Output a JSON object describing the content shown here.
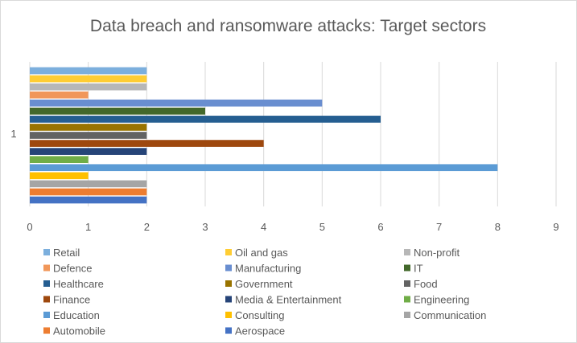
{
  "chart_data": {
    "type": "bar",
    "orientation": "horizontal",
    "title": "Data breach and ransomware attacks: Target sectors",
    "xlabel": "",
    "ylabel": "",
    "categories": [
      "1"
    ],
    "xlim": [
      0,
      9
    ],
    "x_ticks": [
      0,
      1,
      2,
      3,
      4,
      5,
      6,
      7,
      8,
      9
    ],
    "grid": true,
    "legend_position": "bottom",
    "series": [
      {
        "name": "Aerospace",
        "values": [
          2
        ],
        "color": "#4472c4"
      },
      {
        "name": "Automobile",
        "values": [
          2
        ],
        "color": "#ed7d31"
      },
      {
        "name": "Communication",
        "values": [
          2
        ],
        "color": "#a5a5a5"
      },
      {
        "name": "Consulting",
        "values": [
          1
        ],
        "color": "#ffc000"
      },
      {
        "name": "Education",
        "values": [
          8
        ],
        "color": "#5b9bd5"
      },
      {
        "name": "Engineering",
        "values": [
          1
        ],
        "color": "#70ad47"
      },
      {
        "name": "Media & Entertainment",
        "values": [
          2
        ],
        "color": "#264478"
      },
      {
        "name": "Finance",
        "values": [
          4
        ],
        "color": "#9e480e"
      },
      {
        "name": "Food",
        "values": [
          2
        ],
        "color": "#636363"
      },
      {
        "name": "Government",
        "values": [
          2
        ],
        "color": "#997300"
      },
      {
        "name": "Healthcare",
        "values": [
          6
        ],
        "color": "#255e91"
      },
      {
        "name": "IT",
        "values": [
          3
        ],
        "color": "#43682b"
      },
      {
        "name": "Manufacturing",
        "values": [
          5
        ],
        "color": "#698ed0"
      },
      {
        "name": "Defence",
        "values": [
          1
        ],
        "color": "#f1975a"
      },
      {
        "name": "Non-profit",
        "values": [
          2
        ],
        "color": "#b7b7b7"
      },
      {
        "name": "Oil and gas",
        "values": [
          2
        ],
        "color": "#ffcd33"
      },
      {
        "name": "Retail",
        "values": [
          2
        ],
        "color": "#7cafdd"
      }
    ],
    "legend_order": [
      "Retail",
      "Oil and gas",
      "Non-profit",
      "Defence",
      "Manufacturing",
      "IT",
      "Healthcare",
      "Government",
      "Food",
      "Finance",
      "Media & Entertainment",
      "Engineering",
      "Education",
      "Consulting",
      "Communication",
      "Automobile",
      "Aerospace"
    ]
  }
}
